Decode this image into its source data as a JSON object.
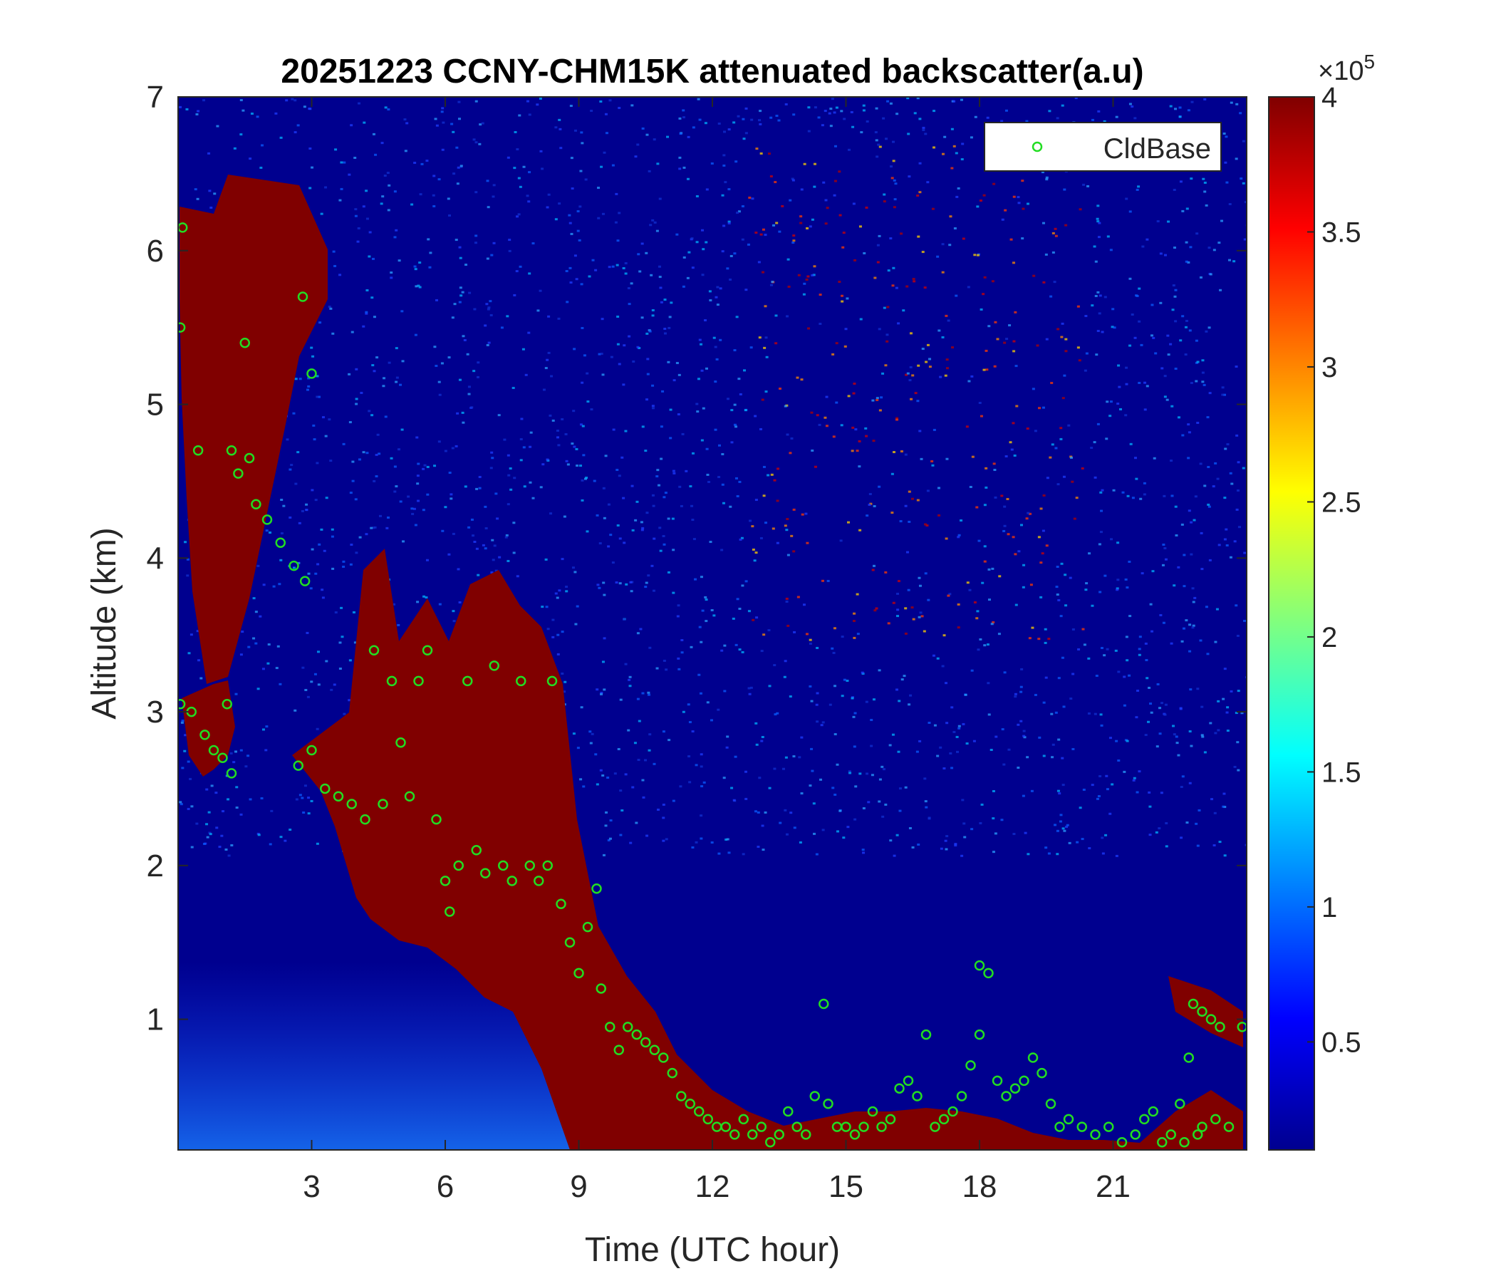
{
  "chart_data": {
    "type": "heatmap",
    "title": "20251223 CCNY-CHM15K attenuated backscatter(a.u)",
    "xlabel": "Time (UTC hour)",
    "ylabel": "Altitude (km)",
    "xlim": [
      0,
      24
    ],
    "ylim": [
      0.15,
      7
    ],
    "xticks": [
      3,
      6,
      9,
      12,
      15,
      18,
      21
    ],
    "yticks": [
      1,
      2,
      3,
      4,
      5,
      6,
      7
    ],
    "colorbar": {
      "colormap": "jet",
      "clim": [
        0.1,
        4
      ],
      "ticks": [
        0.5,
        1,
        1.5,
        2,
        2.5,
        3,
        3.5,
        4
      ],
      "exponent_label": "×10",
      "exponent_power": "5"
    },
    "legend": {
      "position": "top-right",
      "entries": [
        "CldBase"
      ]
    },
    "colors": {
      "cldbase": "#22dd22",
      "saturated": "#800000",
      "background": "#00008f"
    },
    "cloud_base_km": [
      [
        0.05,
        3.05
      ],
      [
        0.1,
        6.15
      ],
      [
        0.05,
        5.5
      ],
      [
        0.3,
        3.0
      ],
      [
        0.45,
        4.7
      ],
      [
        0.6,
        2.85
      ],
      [
        0.8,
        2.75
      ],
      [
        1.0,
        2.7
      ],
      [
        1.1,
        3.05
      ],
      [
        1.2,
        2.6
      ],
      [
        1.2,
        4.7
      ],
      [
        1.35,
        4.55
      ],
      [
        1.5,
        5.4
      ],
      [
        1.6,
        4.65
      ],
      [
        1.75,
        4.35
      ],
      [
        2.0,
        4.25
      ],
      [
        2.3,
        4.1
      ],
      [
        2.6,
        3.95
      ],
      [
        2.85,
        3.85
      ],
      [
        2.8,
        5.7
      ],
      [
        3.0,
        5.2
      ],
      [
        2.7,
        2.65
      ],
      [
        3.0,
        2.75
      ],
      [
        3.3,
        2.5
      ],
      [
        3.6,
        2.45
      ],
      [
        3.9,
        2.4
      ],
      [
        4.2,
        2.3
      ],
      [
        4.4,
        3.4
      ],
      [
        4.6,
        2.4
      ],
      [
        4.8,
        3.2
      ],
      [
        5.0,
        2.8
      ],
      [
        5.2,
        2.45
      ],
      [
        5.4,
        3.2
      ],
      [
        5.6,
        3.4
      ],
      [
        5.8,
        2.3
      ],
      [
        6.0,
        1.9
      ],
      [
        6.1,
        1.7
      ],
      [
        6.3,
        2.0
      ],
      [
        6.5,
        3.2
      ],
      [
        6.7,
        2.1
      ],
      [
        6.9,
        1.95
      ],
      [
        7.1,
        3.3
      ],
      [
        7.3,
        2.0
      ],
      [
        7.5,
        1.9
      ],
      [
        7.7,
        3.2
      ],
      [
        7.9,
        2.0
      ],
      [
        8.1,
        1.9
      ],
      [
        8.3,
        2.0
      ],
      [
        8.4,
        3.2
      ],
      [
        8.6,
        1.75
      ],
      [
        8.8,
        1.5
      ],
      [
        9.0,
        1.3
      ],
      [
        9.2,
        1.6
      ],
      [
        9.4,
        1.85
      ],
      [
        9.5,
        1.2
      ],
      [
        9.7,
        0.95
      ],
      [
        9.9,
        0.8
      ],
      [
        10.1,
        0.95
      ],
      [
        10.3,
        0.9
      ],
      [
        10.5,
        0.85
      ],
      [
        10.7,
        0.8
      ],
      [
        10.9,
        0.75
      ],
      [
        11.1,
        0.65
      ],
      [
        11.3,
        0.5
      ],
      [
        11.5,
        0.45
      ],
      [
        11.7,
        0.4
      ],
      [
        11.9,
        0.35
      ],
      [
        12.1,
        0.3
      ],
      [
        12.3,
        0.3
      ],
      [
        12.5,
        0.25
      ],
      [
        12.7,
        0.35
      ],
      [
        12.9,
        0.25
      ],
      [
        13.1,
        0.3
      ],
      [
        13.3,
        0.2
      ],
      [
        13.5,
        0.25
      ],
      [
        13.7,
        0.4
      ],
      [
        13.9,
        0.3
      ],
      [
        14.1,
        0.25
      ],
      [
        14.3,
        0.5
      ],
      [
        14.5,
        1.1
      ],
      [
        14.6,
        0.45
      ],
      [
        14.8,
        0.3
      ],
      [
        15.0,
        0.3
      ],
      [
        15.2,
        0.25
      ],
      [
        15.4,
        0.3
      ],
      [
        15.6,
        0.4
      ],
      [
        15.8,
        0.3
      ],
      [
        16.0,
        0.35
      ],
      [
        16.2,
        0.55
      ],
      [
        16.4,
        0.6
      ],
      [
        16.6,
        0.5
      ],
      [
        16.8,
        0.9
      ],
      [
        17.0,
        0.3
      ],
      [
        17.2,
        0.35
      ],
      [
        17.4,
        0.4
      ],
      [
        17.6,
        0.5
      ],
      [
        17.8,
        0.7
      ],
      [
        18.0,
        0.9
      ],
      [
        18.2,
        1.3
      ],
      [
        18.0,
        1.35
      ],
      [
        18.4,
        0.6
      ],
      [
        18.6,
        0.5
      ],
      [
        18.8,
        0.55
      ],
      [
        19.0,
        0.6
      ],
      [
        19.2,
        0.75
      ],
      [
        19.4,
        0.65
      ],
      [
        19.6,
        0.45
      ],
      [
        19.8,
        0.3
      ],
      [
        20.0,
        0.35
      ],
      [
        20.3,
        0.3
      ],
      [
        20.6,
        0.25
      ],
      [
        20.9,
        0.3
      ],
      [
        21.2,
        0.2
      ],
      [
        21.5,
        0.25
      ],
      [
        21.7,
        0.35
      ],
      [
        21.9,
        0.4
      ],
      [
        22.1,
        0.2
      ],
      [
        22.3,
        0.25
      ],
      [
        22.5,
        0.45
      ],
      [
        22.7,
        0.75
      ],
      [
        22.8,
        1.1
      ],
      [
        23.0,
        1.05
      ],
      [
        23.2,
        1.0
      ],
      [
        23.4,
        0.95
      ],
      [
        23.6,
        0.3
      ],
      [
        23.9,
        0.95
      ],
      [
        23.0,
        0.3
      ],
      [
        23.3,
        0.35
      ],
      [
        22.9,
        0.25
      ],
      [
        22.6,
        0.2
      ]
    ]
  }
}
